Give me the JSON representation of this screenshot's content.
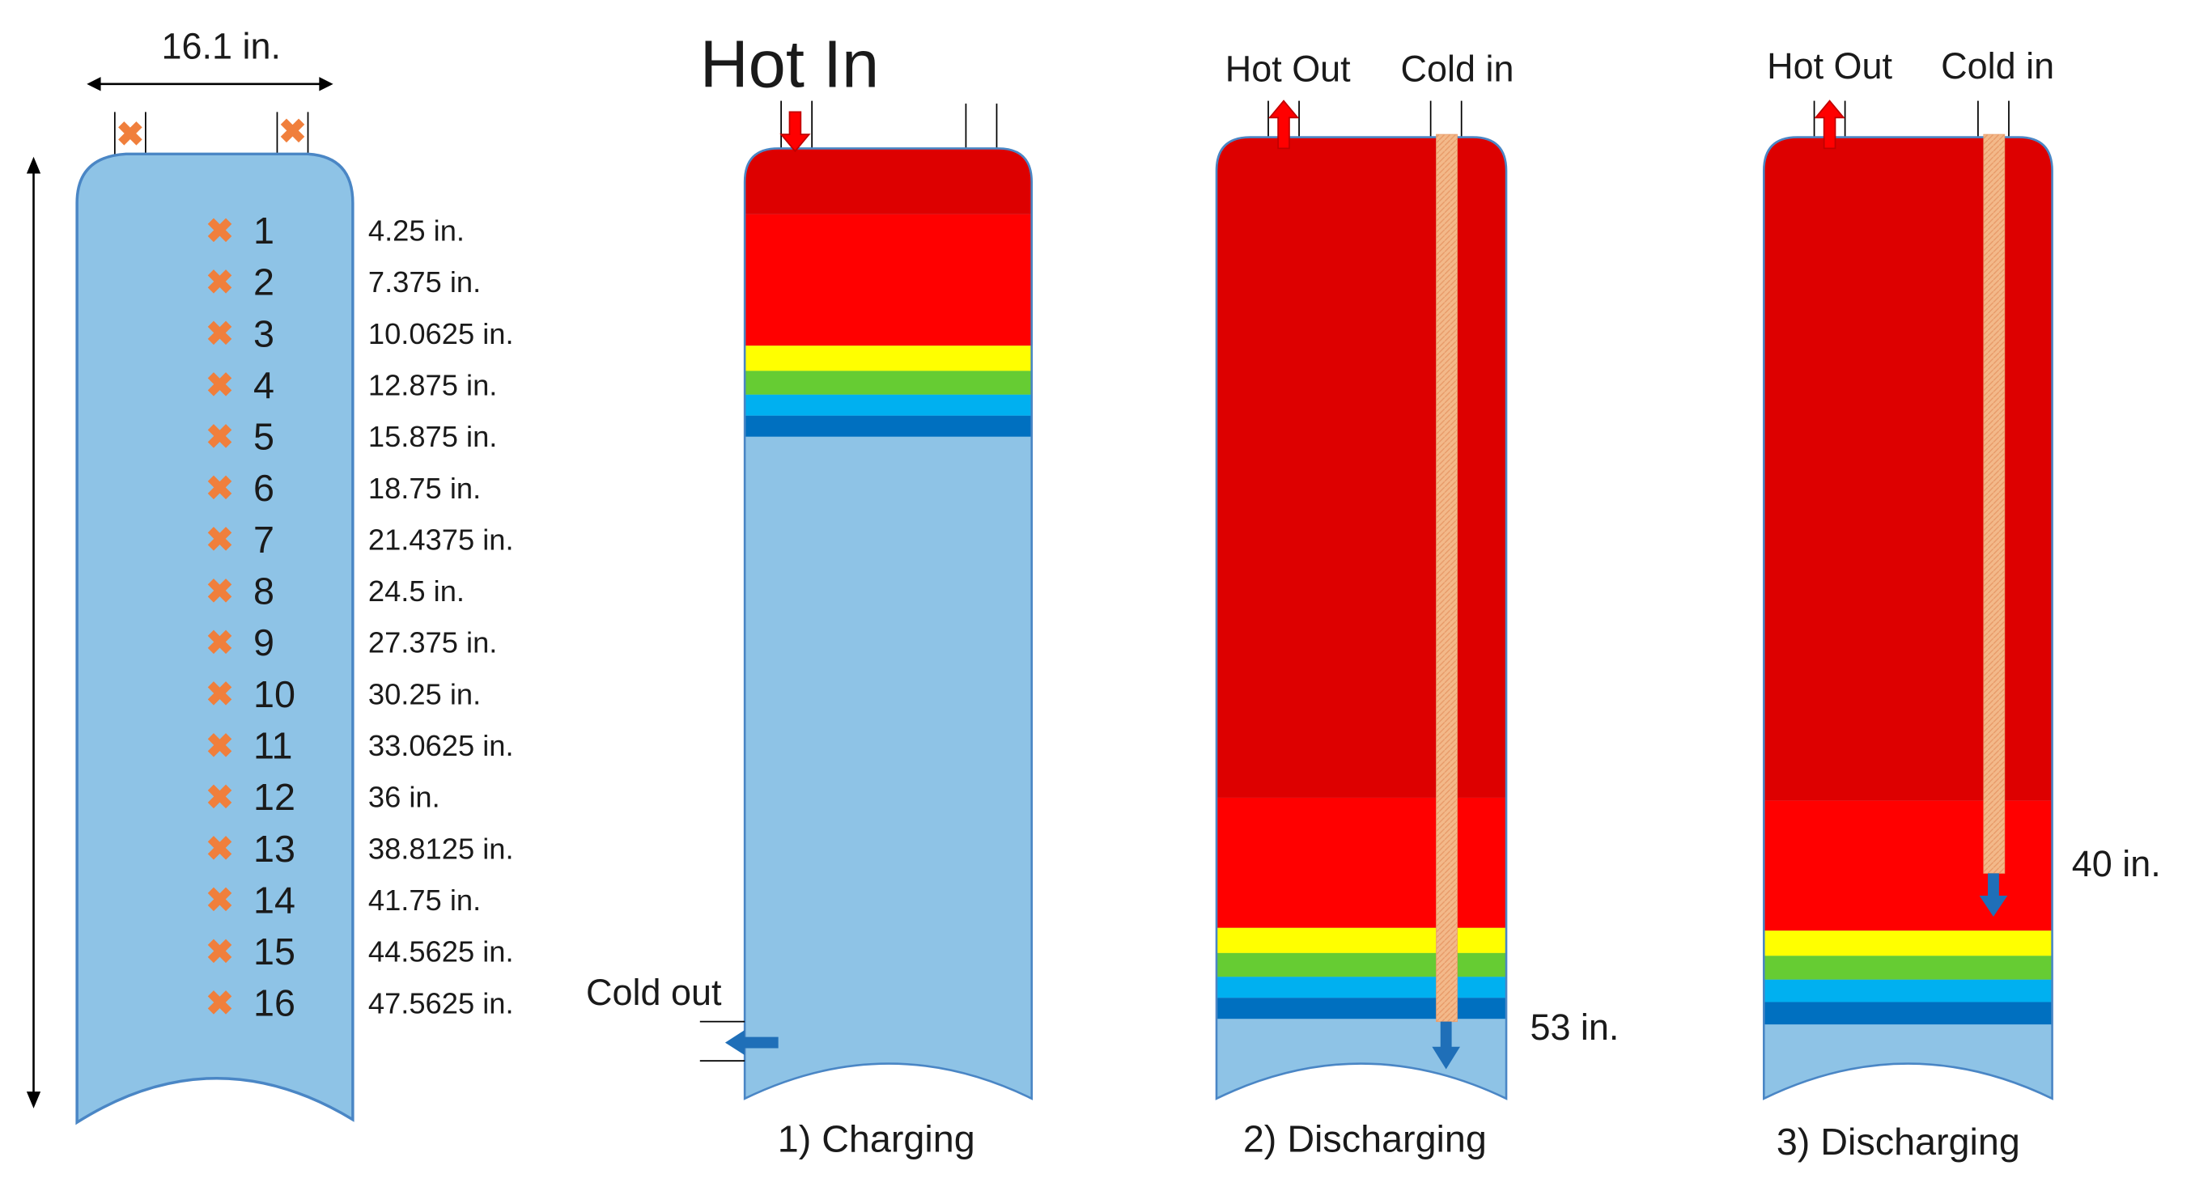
{
  "tank_dimensions": {
    "width_label": "16.1 in."
  },
  "sensors": [
    {
      "number": "1",
      "depth": "4.25 in."
    },
    {
      "number": "2",
      "depth": "7.375 in."
    },
    {
      "number": "3",
      "depth": "10.0625 in."
    },
    {
      "number": "4",
      "depth": "12.875 in."
    },
    {
      "number": "5",
      "depth": "15.875 in."
    },
    {
      "number": "6",
      "depth": "18.75 in."
    },
    {
      "number": "7",
      "depth": "21.4375 in."
    },
    {
      "number": "8",
      "depth": "24.5 in."
    },
    {
      "number": "9",
      "depth": "27.375 in."
    },
    {
      "number": "10",
      "depth": "30.25 in."
    },
    {
      "number": "11",
      "depth": "33.0625 in."
    },
    {
      "number": "12",
      "depth": "36 in."
    },
    {
      "number": "13",
      "depth": "38.8125 in."
    },
    {
      "number": "14",
      "depth": "41.75 in."
    },
    {
      "number": "15",
      "depth": "44.5625 in."
    },
    {
      "number": "16",
      "depth": "47.5625 in."
    }
  ],
  "panels": {
    "charging": {
      "caption": "1) Charging",
      "inlet_label": "Hot In",
      "outlet_label": "Cold out"
    },
    "discharging_1": {
      "caption": "2) Discharging",
      "outlet_label": "Hot Out",
      "inlet_label": "Cold in",
      "depth_label": "53 in."
    },
    "discharging_2": {
      "caption": "3) Discharging",
      "outlet_label": "Hot Out",
      "inlet_label": "Cold in",
      "depth_label": "40 in."
    }
  },
  "colors": {
    "tank_cold": "#8ec3e6",
    "dark_red": "#dd0000",
    "red": "#ff0000",
    "yellow": "#ffff00",
    "green": "#66cc33",
    "cyan": "#00b0f0",
    "blue": "#0070c0",
    "sensor_orange": "#f07f3c",
    "pipe": "#f3b98a"
  }
}
